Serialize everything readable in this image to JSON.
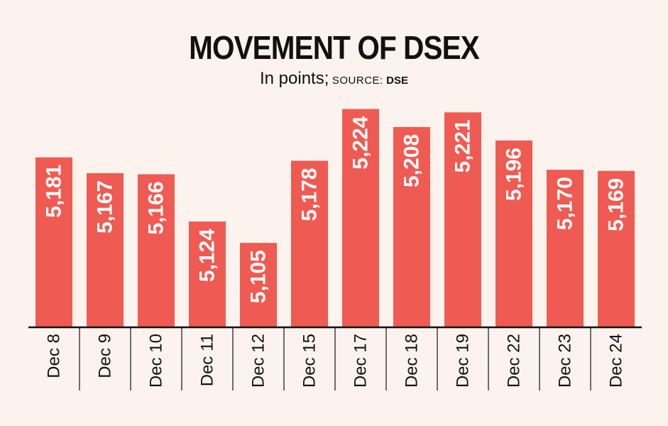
{
  "title": "MOVEMENT OF DSEX",
  "subtitle_unit": "In points;",
  "source_label": "SOURCE:",
  "source_value": "DSE",
  "colors": {
    "bar": "#ef5b52",
    "background": "#fcf3ee",
    "axis": "#111111"
  },
  "chart_data": {
    "type": "bar",
    "title": "MOVEMENT OF DSEX",
    "categories": [
      "Dec 8",
      "Dec 9",
      "Dec 10",
      "Dec 11",
      "Dec 12",
      "Dec 15",
      "Dec 17",
      "Dec 18",
      "Dec 19",
      "Dec 22",
      "Dec 23",
      "Dec 24"
    ],
    "values": [
      5181,
      5167,
      5166,
      5124,
      5105,
      5178,
      5224,
      5208,
      5221,
      5196,
      5170,
      5169
    ],
    "value_labels": [
      "5,181",
      "5,167",
      "5,166",
      "5,124",
      "5,105",
      "5,178",
      "5,224",
      "5,208",
      "5,221",
      "5,196",
      "5,170",
      "5,169"
    ],
    "xlabel": "",
    "ylabel": "",
    "ylim": [
      5030,
      5230
    ],
    "grid": false,
    "legend": "none"
  }
}
